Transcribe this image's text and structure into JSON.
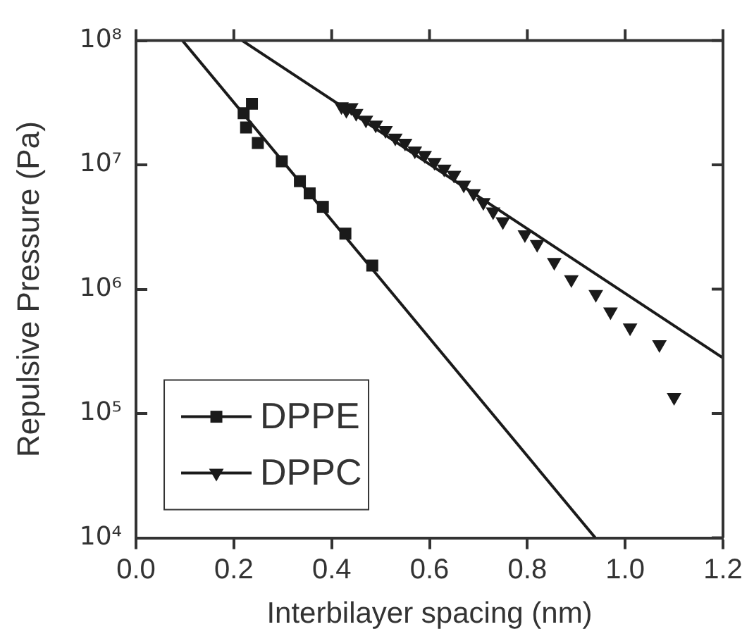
{
  "chart_data": {
    "type": "scatter",
    "xlabel": "Interbilayer spacing (nm)",
    "ylabel": "Repulsive Pressure (Pa)",
    "xlim": [
      0,
      1.2
    ],
    "xticks": [
      {
        "value": 0,
        "label": "0.0"
      },
      0.2,
      0.4,
      0.6,
      0.8,
      {
        "value": 1,
        "label": "1.0"
      },
      1.2
    ],
    "ylim": [
      10000,
      100000000
    ],
    "yticks": [
      {
        "value": 10000,
        "label": "10⁴"
      },
      {
        "value": 100000,
        "label": "10⁵"
      },
      {
        "value": 1000000,
        "label": "10⁶"
      },
      {
        "value": 10000000,
        "label": "10⁷"
      },
      {
        "value": 100000000,
        "label": "10⁸"
      }
    ],
    "log": "y",
    "grid": false,
    "legend": "bottom left",
    "series": [
      {
        "name": "DPPE",
        "marker": "square",
        "color": "#1a1a1a",
        "x": [
          0.22,
          0.225,
          0.237,
          0.249,
          0.298,
          0.335,
          0.355,
          0.382,
          0.428,
          0.483
        ],
        "values": [
          26000000,
          20000000,
          31000000,
          15000000,
          10700000,
          7400000,
          5900000,
          4600000,
          2800000,
          1550000
        ]
      },
      {
        "name": "DPPC",
        "marker": "triangle",
        "color": "#1a1a1a",
        "x": [
          0.42,
          0.43,
          0.44,
          0.45,
          0.47,
          0.49,
          0.51,
          0.53,
          0.55,
          0.57,
          0.59,
          0.61,
          0.63,
          0.65,
          0.67,
          0.69,
          0.71,
          0.73,
          0.75,
          0.795,
          0.82,
          0.855,
          0.89,
          0.94,
          0.97,
          1.01,
          1.07,
          1.1
        ],
        "values": [
          29500000,
          27500000,
          29000000,
          26000000,
          23000000,
          21000000,
          19000000,
          16500000,
          15000000,
          13000000,
          12000000,
          10500000,
          9300000,
          8300000,
          6900000,
          5900000,
          5000000,
          4200000,
          3500000,
          2750000,
          2300000,
          1650000,
          1200000,
          910000,
          660000,
          490000,
          360000,
          135000
        ]
      },
      {
        "type": "line",
        "marker": "none",
        "color": "#1a1a1a",
        "x": [
          0.095,
          0.939
        ],
        "values": [
          100000000,
          10000
        ]
      },
      {
        "type": "line",
        "marker": "none",
        "color": "#1a1a1a",
        "x": [
          0.217,
          1.2
        ],
        "values": [
          100000000,
          280000
        ]
      }
    ]
  }
}
